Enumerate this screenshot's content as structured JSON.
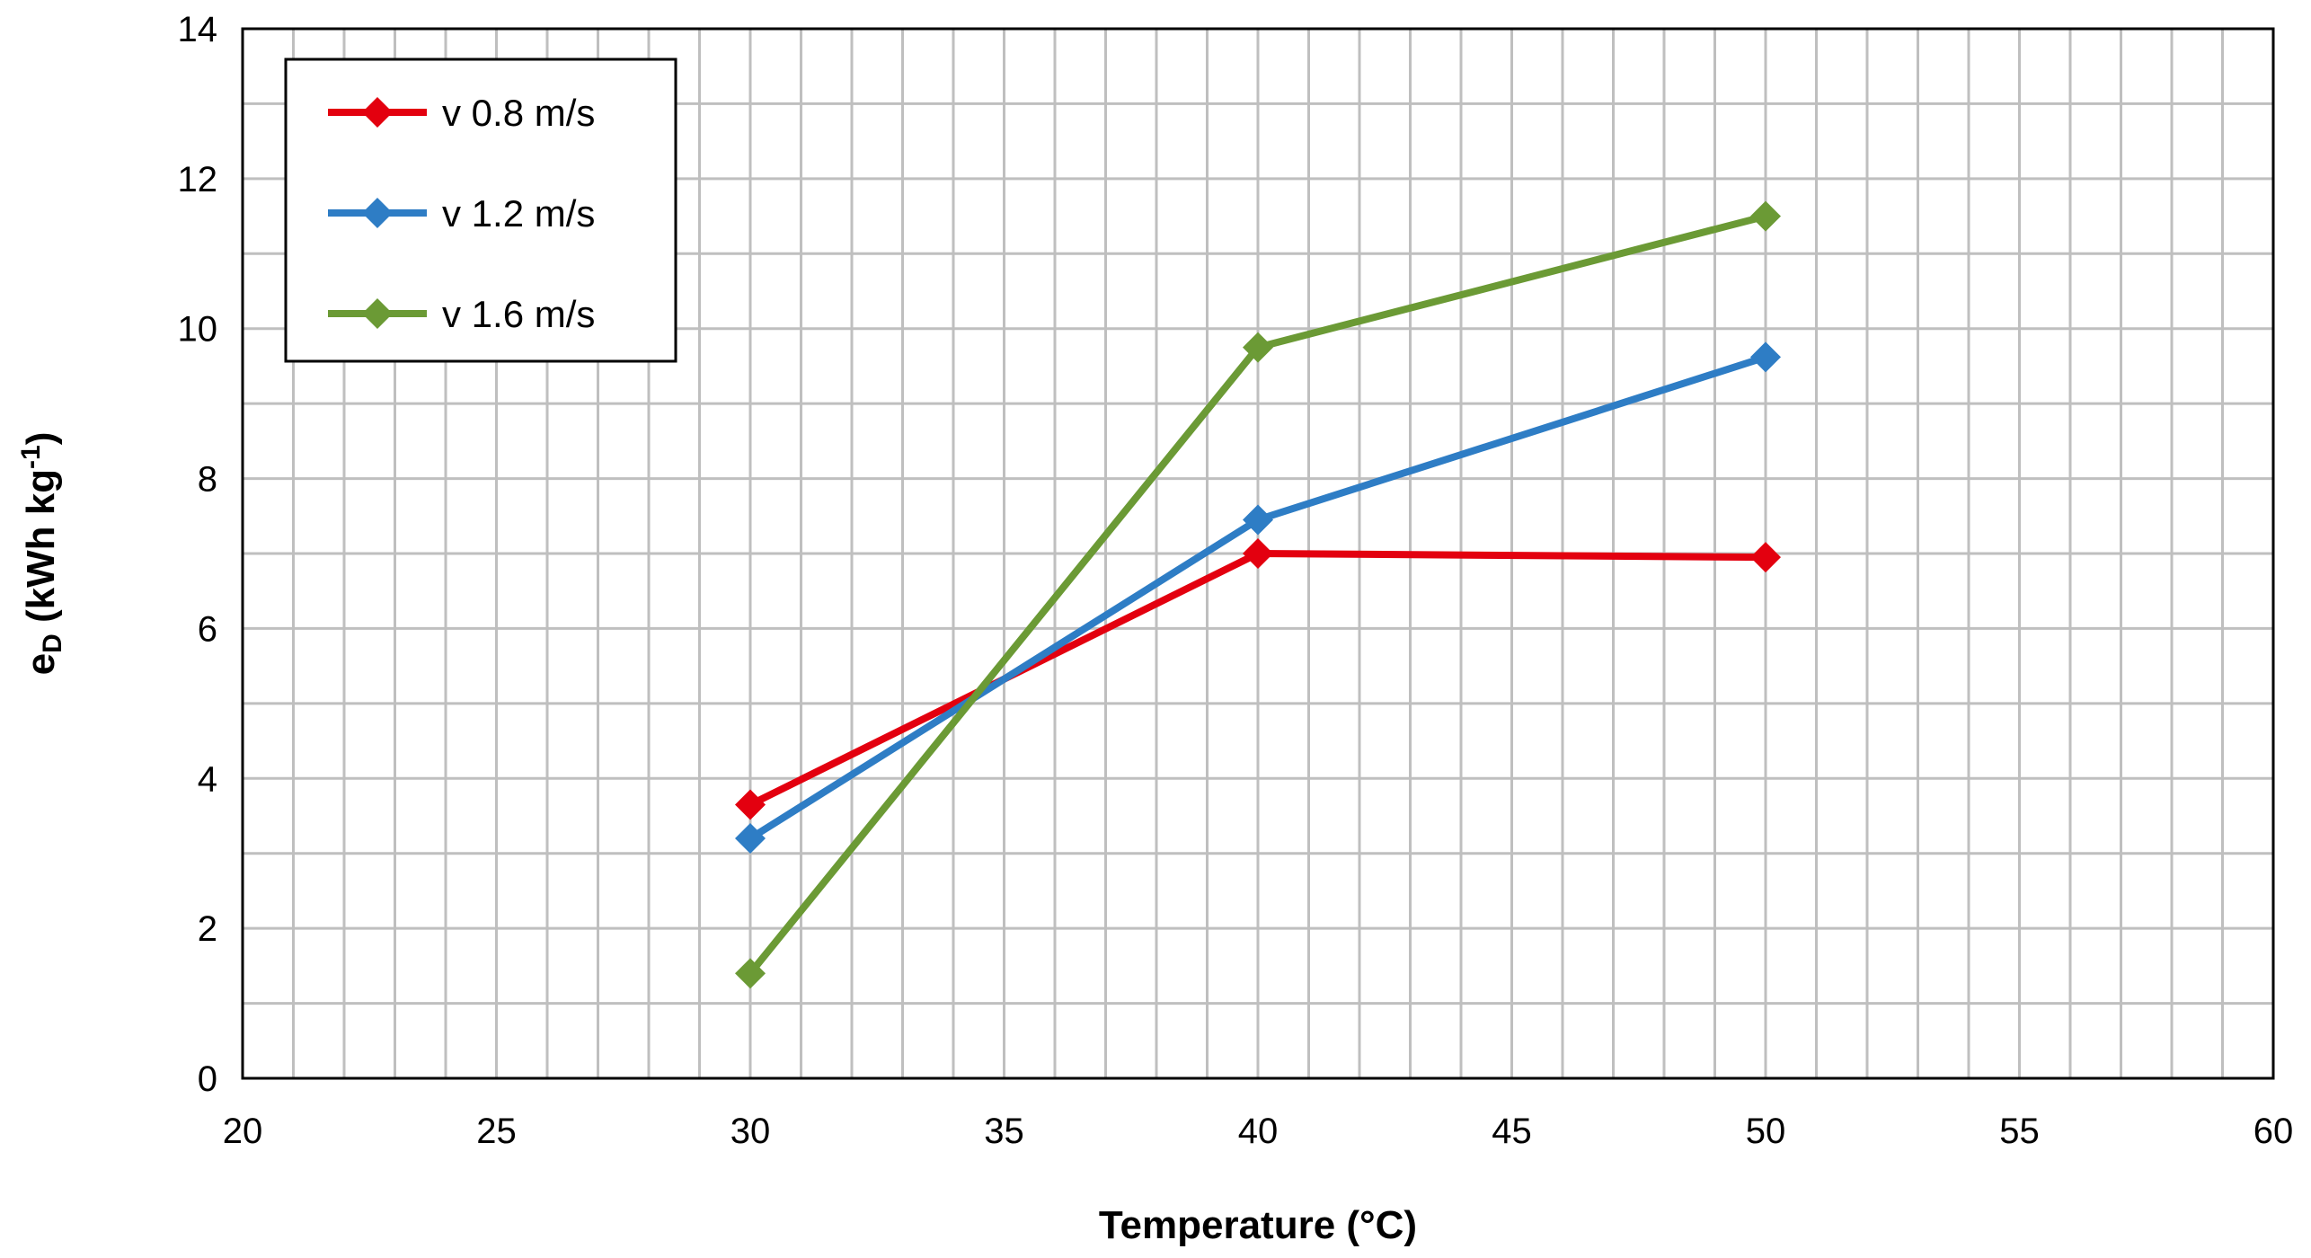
{
  "chart_data": {
    "type": "line",
    "title": "",
    "xlabel": "Temperature (°C)",
    "ylabel": {
      "base": "e",
      "base_sub": "D",
      "middle": " (kWh kg",
      "middle_sup": "-1",
      "end": ")"
    },
    "xlim": [
      20,
      60
    ],
    "ylim": [
      0,
      14
    ],
    "x_major_ticks": [
      "20",
      "25",
      "30",
      "35",
      "40",
      "45",
      "50",
      "55",
      "60"
    ],
    "y_major_ticks": [
      "0",
      "2",
      "4",
      "6",
      "8",
      "10",
      "12",
      "14"
    ],
    "x_minor_step": 1,
    "y_minor_step": 1,
    "grid": true,
    "legend_position": "top-left",
    "series": [
      {
        "name": "v 0.8 m/s",
        "color": "#E3000F",
        "marker": "diamond",
        "points": [
          {
            "x": 30,
            "y": 3.65
          },
          {
            "x": 40,
            "y": 7.0
          },
          {
            "x": 50,
            "y": 6.95
          }
        ]
      },
      {
        "name": "v 1.2 m/s",
        "color": "#2E7DC5",
        "marker": "diamond",
        "points": [
          {
            "x": 30,
            "y": 3.2
          },
          {
            "x": 40,
            "y": 7.45
          },
          {
            "x": 50,
            "y": 9.62
          }
        ]
      },
      {
        "name": "v 1.6 m/s",
        "color": "#6B9A35",
        "marker": "diamond",
        "points": [
          {
            "x": 30,
            "y": 1.4
          },
          {
            "x": 40,
            "y": 9.75
          },
          {
            "x": 50,
            "y": 11.5
          }
        ]
      }
    ]
  }
}
